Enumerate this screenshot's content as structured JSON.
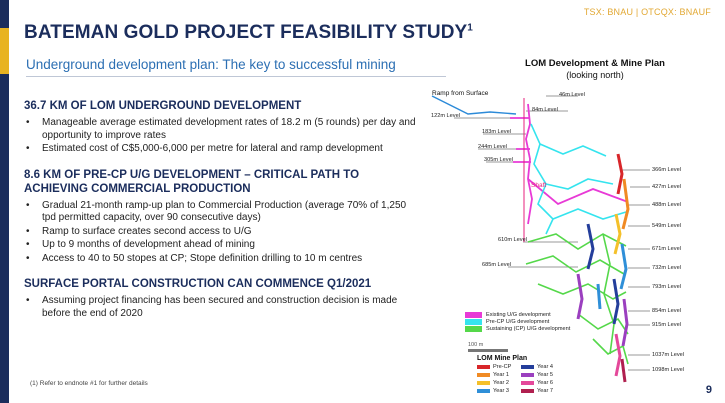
{
  "ticker": "TSX: BNAU | OTCQX: BNAUF",
  "title": "BATEMAN GOLD PROJECT FEASIBILITY STUDY",
  "title_sup": "1",
  "subtitle": "Underground development plan: The key to successful mining",
  "sections": [
    {
      "heading": "36.7 KM OF LOM UNDERGROUND DEVELOPMENT",
      "bullets": [
        "Manageable average estimated development rates of 18.2 m (5 rounds) per day and opportunity to improve rates",
        "Estimated cost of C$5,000-6,000 per metre for lateral and ramp development"
      ]
    },
    {
      "heading": "8.6 KM OF PRE-CP U/G DEVELOPMENT – CRITICAL PATH TO ACHIEVING COMMERCIAL PRODUCTION",
      "bullets": [
        "Gradual 21-month ramp-up plan to Commercial Production (average 70% of 1,250 tpd permitted capacity, over 90 consecutive days)",
        "Ramp to surface creates second access to U/G",
        "Up to 9 months of development ahead of mining",
        "Access to 40 to 50 stopes at CP; Stope definition drilling to 10 m centres"
      ]
    },
    {
      "heading": "SURFACE PORTAL CONSTRUCTION CAN COMMENCE Q1/2021",
      "bullets": [
        "Assuming project financing has been secured and construction decision is made before the end of 2020"
      ]
    }
  ],
  "footnote": "(1) Refer to endnote #1 for further details",
  "page_number": "9",
  "mine_plan": {
    "title": "LOM Development & Mine Plan",
    "subtitle": "(looking north)",
    "ramp_label": "Ramp from Surface",
    "shaft_label": "Shaft",
    "levels_left": [
      "46m Level",
      "84m Level",
      "122m Level",
      "183m Level",
      "244m Level",
      "305m Level",
      "610m Level",
      "685m Level"
    ],
    "levels_right": [
      "366m Level",
      "427m Level",
      "488m Level",
      "549m Level",
      "671m Level",
      "732m Level",
      "793m Level",
      "854m Level",
      "915m Level",
      "1037m Level",
      "1098m Level"
    ],
    "legend": [
      {
        "label": "Existing U/G development",
        "color": "#e83ad6"
      },
      {
        "label": "Pre-CP U/G development",
        "color": "#35e4ee"
      },
      {
        "label": "Sustaining (CP) U/G development",
        "color": "#55d84a"
      }
    ],
    "scale_label": "100 m",
    "plan_legend_title": "LOM Mine Plan",
    "plan_legend": [
      {
        "label": "Pre-CP",
        "color": "#d8262a"
      },
      {
        "label": "Year 4",
        "color": "#243e9b"
      },
      {
        "label": "Year 1",
        "color": "#f08a24"
      },
      {
        "label": "Year 5",
        "color": "#9b3fbf"
      },
      {
        "label": "Year 2",
        "color": "#f4c02a"
      },
      {
        "label": "Year 6",
        "color": "#e4489a"
      },
      {
        "label": "Year 3",
        "color": "#2f8fd8"
      },
      {
        "label": "Year 7",
        "color": "#b0204f"
      }
    ]
  }
}
